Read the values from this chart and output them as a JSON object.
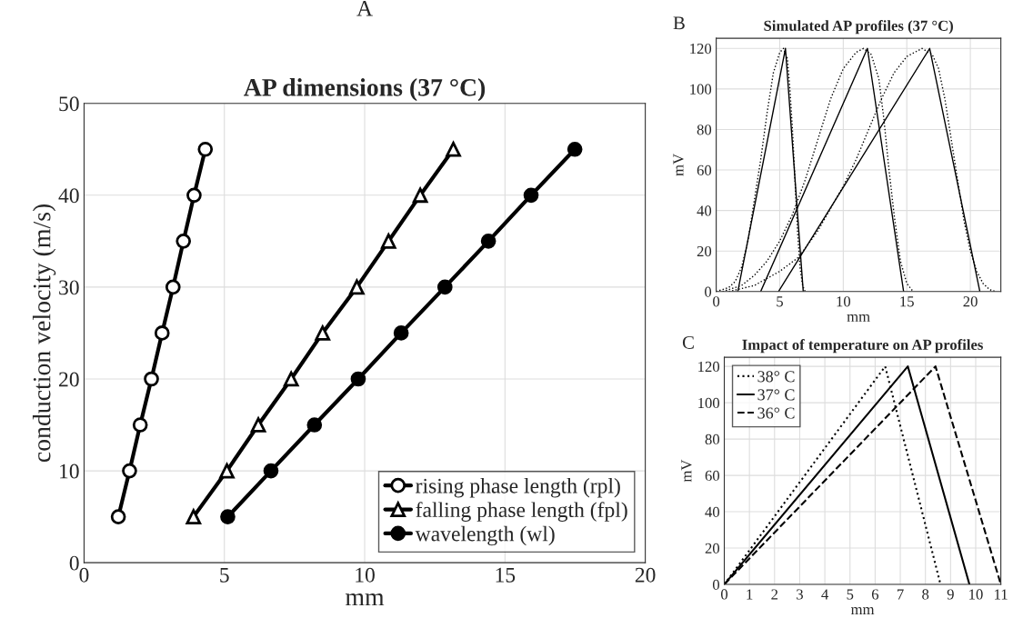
{
  "chart_data": [
    {
      "type": "line",
      "title": "AP dimensions (37 °C)",
      "xlabel": "mm",
      "ylabel": "conduction velocity (m/s)",
      "annotations": [
        "A"
      ],
      "xlim": [
        0,
        20
      ],
      "xticks": [
        0,
        5,
        10,
        15,
        20
      ],
      "ylim": [
        0,
        50
      ],
      "yticks": [
        0,
        10,
        20,
        30,
        40,
        50
      ],
      "grid": true,
      "legend": "bottom right",
      "series": [
        {
          "name": "rising phase length (rpl)",
          "color": "#000000",
          "marker": "circle",
          "x": [
            1.22,
            1.62,
            2.0,
            2.4,
            2.78,
            3.17,
            3.54,
            3.92,
            4.32
          ],
          "values": [
            5,
            10,
            15,
            20,
            25,
            30,
            35,
            40,
            45
          ]
        },
        {
          "name": "falling phase length (fpl)",
          "color": "#000000",
          "marker": "triangle",
          "x": [
            3.9,
            5.09,
            6.21,
            7.38,
            8.5,
            9.72,
            10.85,
            11.98,
            13.16
          ],
          "values": [
            5,
            10,
            15,
            20,
            25,
            30,
            35,
            40,
            45
          ]
        },
        {
          "name": "wavelength (wl)",
          "color": "#000000",
          "marker": "circle",
          "x": [
            5.12,
            6.66,
            8.21,
            9.77,
            11.3,
            12.86,
            14.41,
            15.93,
            17.49
          ],
          "values": [
            5,
            10,
            15,
            20,
            25,
            30,
            35,
            40,
            45
          ]
        }
      ]
    },
    {
      "type": "line",
      "title": "Simulated AP profiles (37 °C)",
      "xlabel": "mm",
      "ylabel": "mV",
      "annotations": [
        "B"
      ],
      "xlim": [
        0,
        22.4
      ],
      "xticks": [
        0,
        5,
        10,
        15,
        20
      ],
      "ylim": [
        0,
        125
      ],
      "yticks": [
        0,
        20,
        40,
        60,
        80,
        100,
        120
      ],
      "grid": true,
      "series": [
        {
          "color": "#000000",
          "line_style": "solid",
          "x": [
            1.7,
            5.45,
            6.85
          ],
          "values": [
            0,
            120,
            0
          ]
        },
        {
          "color": "#000000",
          "line_style": "solid",
          "x": [
            3.5,
            11.9,
            14.75
          ],
          "values": [
            0,
            120,
            0
          ]
        },
        {
          "color": "#000000",
          "line_style": "solid",
          "x": [
            4.9,
            16.8,
            20.75
          ],
          "values": [
            0,
            120,
            0
          ]
        },
        {
          "color": "#000000",
          "line_style": "dotted",
          "x": [
            0,
            1,
            1.5,
            2,
            2.5,
            3,
            3.5,
            4,
            4.5,
            5,
            5.3,
            5.6,
            5.8,
            6,
            6.2,
            6.4,
            6.6,
            6.8,
            7.0
          ],
          "values": [
            0,
            2,
            5,
            12,
            25,
            45,
            65,
            88,
            108,
            118,
            120,
            115,
            100,
            80,
            55,
            30,
            12,
            3,
            0
          ]
        },
        {
          "color": "#000000",
          "line_style": "dotted",
          "x": [
            0.5,
            2,
            3,
            4,
            5,
            6,
            7,
            8,
            9,
            10,
            11,
            11.6,
            12.2,
            12.8,
            13.2,
            13.6,
            14,
            14.5,
            15,
            15.5
          ],
          "values": [
            0,
            3,
            8,
            15,
            25,
            38,
            55,
            75,
            95,
            110,
            118,
            120,
            117,
            105,
            85,
            60,
            38,
            15,
            4,
            0
          ]
        },
        {
          "color": "#000000",
          "line_style": "dotted",
          "x": [
            1,
            3,
            5,
            6.5,
            8,
            10,
            11,
            12,
            13,
            14,
            15,
            16.2,
            17,
            17.5,
            18,
            18.5,
            19,
            19.5,
            20,
            20.5,
            21,
            21.5,
            22
          ],
          "values": [
            0,
            3,
            10,
            17,
            30,
            52,
            65,
            80,
            95,
            108,
            116,
            120,
            117,
            110,
            95,
            75,
            55,
            35,
            20,
            10,
            4,
            1,
            0
          ]
        }
      ]
    },
    {
      "type": "line",
      "title": "Impact of temperature on AP profiles",
      "xlabel": "mm",
      "ylabel": "mV",
      "annotations": [
        "C"
      ],
      "xlim": [
        0,
        11
      ],
      "xticks": [
        0,
        1,
        2,
        3,
        4,
        5,
        6,
        7,
        8,
        9,
        10,
        11
      ],
      "ylim": [
        0,
        125
      ],
      "yticks": [
        0,
        20,
        40,
        60,
        80,
        100,
        120
      ],
      "grid": true,
      "legend": "top left",
      "series": [
        {
          "name": "38° C",
          "color": "#000000",
          "line_style": "dotted",
          "x": [
            0,
            6.4,
            8.6
          ],
          "values": [
            0,
            120,
            0
          ]
        },
        {
          "name": "37° C",
          "color": "#000000",
          "line_style": "solid",
          "x": [
            0,
            7.3,
            9.75
          ],
          "values": [
            0,
            120,
            0
          ]
        },
        {
          "name": "36° C",
          "color": "#000000",
          "line_style": "dashed",
          "x": [
            0,
            8.4,
            11
          ],
          "values": [
            0,
            120,
            0
          ]
        }
      ]
    }
  ]
}
